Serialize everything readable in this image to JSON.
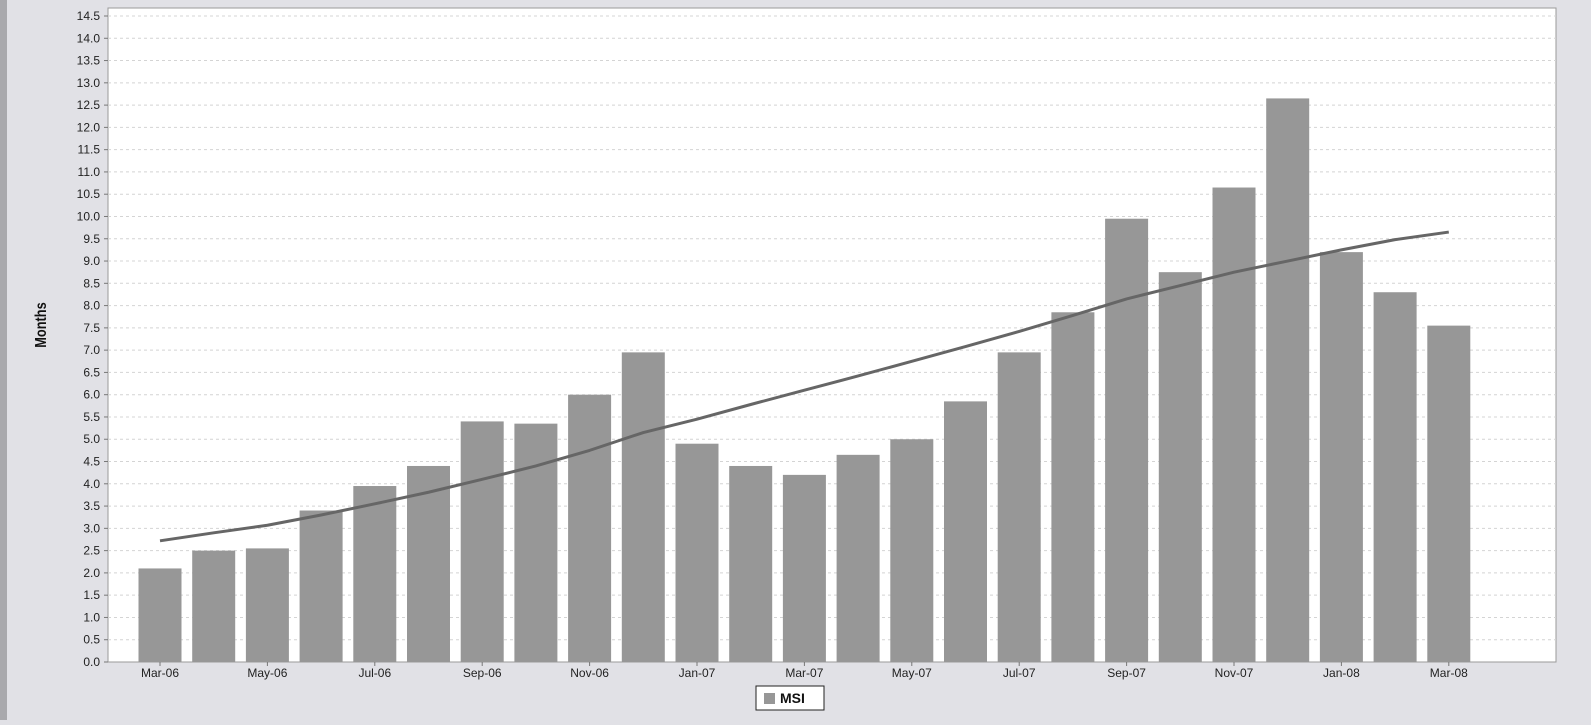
{
  "chart_data": {
    "type": "bar",
    "title": "",
    "xlabel": "",
    "ylabel": "Months",
    "ylim": [
      0,
      14.5
    ],
    "y_ticks": [
      "0.0",
      "0.5",
      "1.0",
      "1.5",
      "2.0",
      "2.5",
      "3.0",
      "3.5",
      "4.0",
      "4.5",
      "5.0",
      "5.5",
      "6.0",
      "6.5",
      "7.0",
      "7.5",
      "8.0",
      "8.5",
      "9.0",
      "9.5",
      "10.0",
      "10.5",
      "11.0",
      "11.5",
      "12.0",
      "12.5",
      "13.0",
      "13.5",
      "14.0",
      "14.5"
    ],
    "categories": [
      "Mar-06",
      "Apr-06",
      "May-06",
      "Jun-06",
      "Jul-06",
      "Aug-06",
      "Sep-06",
      "Oct-06",
      "Nov-06",
      "Dec-06",
      "Jan-07",
      "Feb-07",
      "Mar-07",
      "Apr-07",
      "May-07",
      "Jun-07",
      "Jul-07",
      "Aug-07",
      "Sep-07",
      "Oct-07",
      "Nov-07",
      "Dec-07",
      "Jan-08",
      "Feb-08",
      "Mar-08"
    ],
    "x_tick_labels": [
      "Mar-06",
      "May-06",
      "Jul-06",
      "Sep-06",
      "Nov-06",
      "Jan-07",
      "Mar-07",
      "May-07",
      "Jul-07",
      "Sep-07",
      "Nov-07",
      "Jan-08",
      "Mar-08"
    ],
    "series": [
      {
        "name": "MSI",
        "type": "bar",
        "values": [
          2.1,
          2.5,
          2.55,
          3.4,
          3.95,
          4.4,
          5.4,
          5.35,
          6.0,
          6.95,
          4.9,
          4.4,
          4.2,
          4.65,
          5.0,
          5.85,
          6.95,
          7.85,
          9.95,
          8.75,
          10.65,
          12.65,
          9.2,
          8.3,
          7.55
        ]
      },
      {
        "type": "line",
        "values": [
          2.72,
          2.9,
          3.07,
          3.3,
          3.55,
          3.81,
          4.1,
          4.4,
          4.75,
          5.15,
          5.45,
          5.78,
          6.1,
          6.42,
          6.75,
          7.08,
          7.42,
          7.78,
          8.15,
          8.45,
          8.75,
          9.0,
          9.25,
          9.48,
          9.65
        ]
      }
    ],
    "grid": true,
    "legend": {
      "position": "bottom-center",
      "entries": [
        "MSI"
      ]
    },
    "colors": {
      "bar": "#979797",
      "line": "#666666",
      "plot_background": "#ffffff",
      "page_background": "#e1e1e6",
      "grid": "#d4d4d4",
      "text": "#222222"
    }
  }
}
